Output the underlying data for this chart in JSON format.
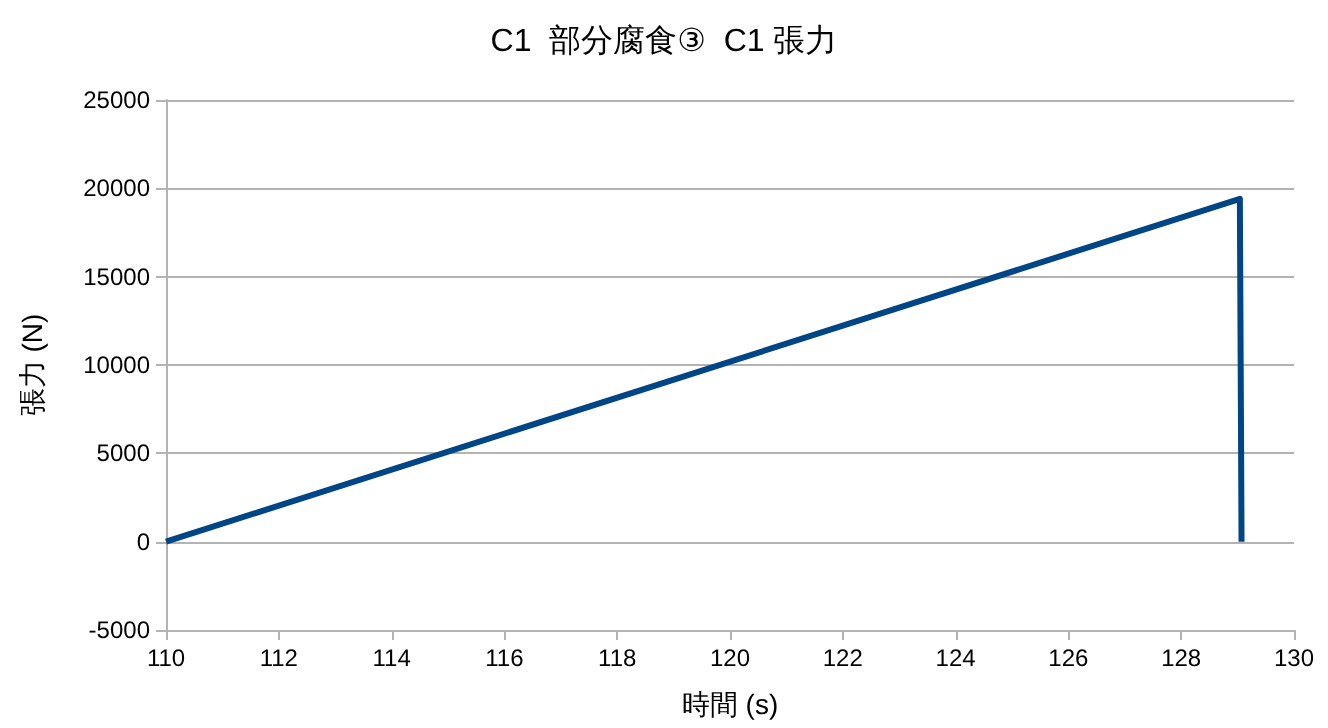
{
  "chart_data": {
    "type": "line",
    "title": "C1  部分腐食③  C1 張力",
    "xlabel": "時間 (s)",
    "ylabel": "張力 (N)",
    "x": [
      110,
      129.04,
      129.07
    ],
    "series": [
      {
        "color": "#004586",
        "values": [
          0,
          19400,
          0
        ]
      }
    ],
    "xlim": [
      110,
      130
    ],
    "xticks": [
      110,
      112,
      114,
      116,
      118,
      120,
      122,
      124,
      126,
      128,
      130
    ],
    "ylim": [
      -5000,
      25000
    ],
    "yticks": [
      -5000,
      0,
      5000,
      10000,
      15000,
      20000,
      25000
    ],
    "grid": "y",
    "marker": "none",
    "line_style": "solid"
  }
}
